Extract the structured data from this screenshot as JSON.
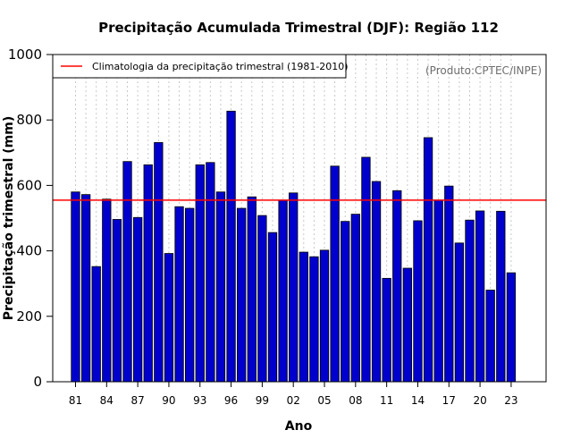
{
  "chart_data": {
    "type": "bar",
    "title": "Precipitação Acumulada Trimestral (DJF): Região 112",
    "xlabel": "Ano",
    "ylabel": "Precipitação trimestral (mm)",
    "ylim": [
      0,
      1000
    ],
    "yticks": [
      0,
      200,
      400,
      600,
      800,
      1000
    ],
    "grid": "vertical dotted",
    "credit": "(Produto:CPTEC/INPE)",
    "legend": {
      "label": "Climatologia da precipitação trimestral (1981-2010)",
      "position": "top-left"
    },
    "climatology": 555,
    "categories": [
      "81",
      "82",
      "83",
      "84",
      "85",
      "86",
      "87",
      "88",
      "89",
      "90",
      "91",
      "92",
      "93",
      "94",
      "95",
      "96",
      "97",
      "98",
      "99",
      "00",
      "01",
      "02",
      "03",
      "04",
      "05",
      "06",
      "07",
      "08",
      "09",
      "10",
      "11",
      "12",
      "13",
      "14",
      "15",
      "16",
      "17",
      "18",
      "19",
      "20",
      "21",
      "22",
      "23"
    ],
    "xtick_labels": [
      "81",
      "84",
      "87",
      "90",
      "93",
      "96",
      "99",
      "02",
      "05",
      "08",
      "11",
      "14",
      "17",
      "20",
      "23"
    ],
    "xtick_indices": [
      0,
      3,
      6,
      9,
      12,
      15,
      18,
      21,
      24,
      27,
      30,
      33,
      36,
      39,
      42
    ],
    "values": [
      580,
      572,
      352,
      558,
      496,
      673,
      502,
      663,
      731,
      392,
      535,
      530,
      663,
      670,
      580,
      827,
      530,
      565,
      508,
      456,
      555,
      577,
      396,
      382,
      402,
      659,
      490,
      512,
      686,
      612,
      316,
      584,
      347,
      492,
      746,
      555,
      598,
      424,
      494,
      522,
      280,
      521,
      333
    ],
    "colors": {
      "bar": "#0000cd",
      "bar_edge": "#000000",
      "climatology": "#ff0000",
      "grid": "#c8c8c8"
    }
  }
}
